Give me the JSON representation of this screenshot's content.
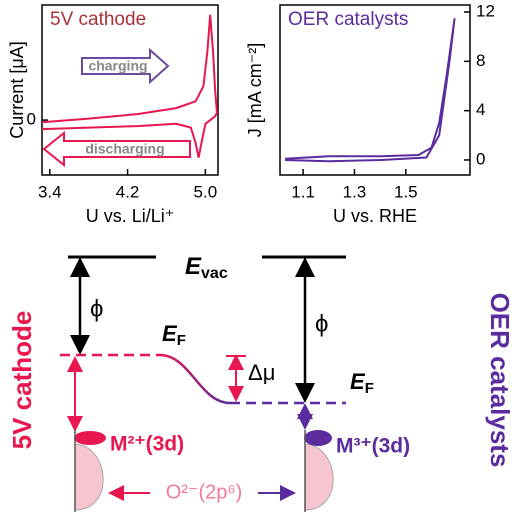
{
  "chart_data": [
    {
      "type": "line",
      "title": "5V cathode",
      "xlabel": "U vs. Li/Li⁺",
      "ylabel": "Current [μA]",
      "xlim": [
        3.32,
        5.13
      ],
      "xticks": [
        3.4,
        4.2,
        {
          "value": 5,
          "label": "5.0"
        }
      ],
      "ylim": [
        -0.73,
        1.53
      ],
      "yticks": [
        0
      ],
      "yaxis_side": "left",
      "annotations": [
        "charging",
        "discharging"
      ],
      "series": [
        {
          "color": "#e8174f",
          "x": [
            3.32,
            3.8,
            4.3,
            4.7,
            4.9,
            4.98,
            5.02,
            5.05,
            5.08,
            5.1,
            5.12,
            5.1,
            5.0,
            4.96,
            4.93,
            4.9,
            4.85,
            4.7,
            4.3,
            3.8,
            3.32
          ],
          "values": [
            -0.03,
            0.02,
            0.08,
            0.16,
            0.25,
            0.45,
            0.9,
            1.4,
            0.9,
            0.4,
            0.1,
            0.05,
            -0.05,
            -0.3,
            -0.5,
            -0.3,
            -0.1,
            -0.05,
            -0.08,
            -0.1,
            -0.12
          ]
        }
      ]
    },
    {
      "type": "line",
      "title": "OER catalysts",
      "xlabel": "U vs. RHE",
      "ylabel": "J [mA cm⁻²]",
      "xlim": [
        1.01,
        1.75
      ],
      "xticks": [
        1.1,
        1.3,
        1.5
      ],
      "ylim": [
        -1.22,
        12.57
      ],
      "yticks": [
        0,
        4,
        8,
        12
      ],
      "yaxis_side": "right",
      "series": [
        {
          "color": "#5b2c9e",
          "x": [
            1.03,
            1.2,
            1.4,
            1.55,
            1.6,
            1.63,
            1.66,
            1.69,
            1.67,
            1.63,
            1.58,
            1.4,
            1.2,
            1.03
          ],
          "values": [
            0.1,
            0.3,
            0.3,
            0.4,
            1,
            3,
            7,
            11.5,
            8,
            2,
            0.2,
            0,
            -0.1,
            0
          ]
        }
      ]
    }
  ],
  "diagram": {
    "evac": {
      "main": "E",
      "sub": "vac"
    },
    "ef_left": {
      "main": "E",
      "sub": "F"
    },
    "ef_right": {
      "main": "E",
      "sub": "F"
    },
    "phi_left": "ϕ",
    "phi_right": "ϕ",
    "delta_mu": "Δμ",
    "m_left": "M²⁺(3d)",
    "m_right": "M³⁺(3d)",
    "oxygen": "O²⁻(2p⁶)",
    "side_left": "5V cathode",
    "side_right": "OER catalysts"
  }
}
